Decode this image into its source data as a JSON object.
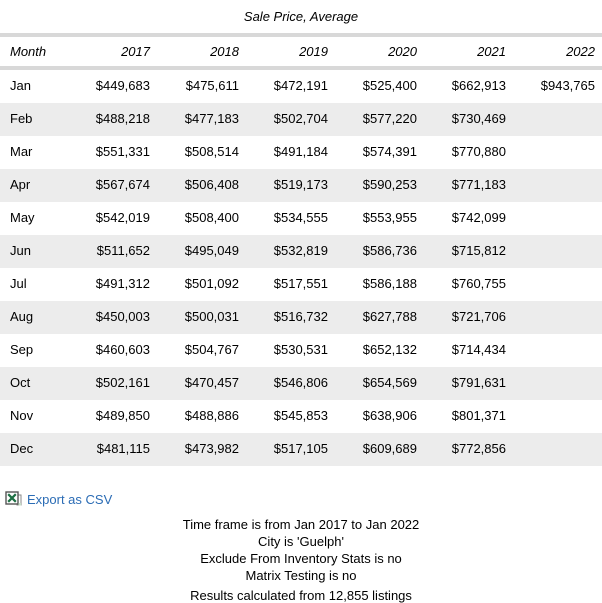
{
  "title": "Sale Price, Average",
  "table": {
    "columns": [
      "Month",
      "2017",
      "2018",
      "2019",
      "2020",
      "2021",
      "2022"
    ],
    "rows": [
      {
        "month": "Jan",
        "values": [
          "$449,683",
          "$475,611",
          "$472,191",
          "$525,400",
          "$662,913",
          "$943,765"
        ]
      },
      {
        "month": "Feb",
        "values": [
          "$488,218",
          "$477,183",
          "$502,704",
          "$577,220",
          "$730,469",
          ""
        ]
      },
      {
        "month": "Mar",
        "values": [
          "$551,331",
          "$508,514",
          "$491,184",
          "$574,391",
          "$770,880",
          ""
        ]
      },
      {
        "month": "Apr",
        "values": [
          "$567,674",
          "$506,408",
          "$519,173",
          "$590,253",
          "$771,183",
          ""
        ]
      },
      {
        "month": "May",
        "values": [
          "$542,019",
          "$508,400",
          "$534,555",
          "$553,955",
          "$742,099",
          ""
        ]
      },
      {
        "month": "Jun",
        "values": [
          "$511,652",
          "$495,049",
          "$532,819",
          "$586,736",
          "$715,812",
          ""
        ]
      },
      {
        "month": "Jul",
        "values": [
          "$491,312",
          "$501,092",
          "$517,551",
          "$586,188",
          "$760,755",
          ""
        ]
      },
      {
        "month": "Aug",
        "values": [
          "$450,003",
          "$500,031",
          "$516,732",
          "$627,788",
          "$721,706",
          ""
        ]
      },
      {
        "month": "Sep",
        "values": [
          "$460,603",
          "$504,767",
          "$530,531",
          "$652,132",
          "$714,434",
          ""
        ]
      },
      {
        "month": "Oct",
        "values": [
          "$502,161",
          "$470,457",
          "$546,806",
          "$654,569",
          "$791,631",
          ""
        ]
      },
      {
        "month": "Nov",
        "values": [
          "$489,850",
          "$488,886",
          "$545,853",
          "$638,906",
          "$801,371",
          ""
        ]
      },
      {
        "month": "Dec",
        "values": [
          "$481,115",
          "$473,982",
          "$517,105",
          "$609,689",
          "$772,856",
          ""
        ]
      }
    ]
  },
  "export": {
    "label": "Export as CSV",
    "icon": "excel-csv-icon"
  },
  "footer": {
    "lines": [
      "Time frame is from Jan 2017 to Jan 2022",
      "City is 'Guelph'",
      "Exclude From Inventory Stats is no",
      "Matrix Testing is no"
    ],
    "results": "Results calculated from 12,855 listings"
  },
  "colors": {
    "link_blue": "#2b6cb5",
    "row_alt_gray": "#ececec",
    "header_bar_gray": "#d8d8d8",
    "excel_green": "#1d7044"
  }
}
